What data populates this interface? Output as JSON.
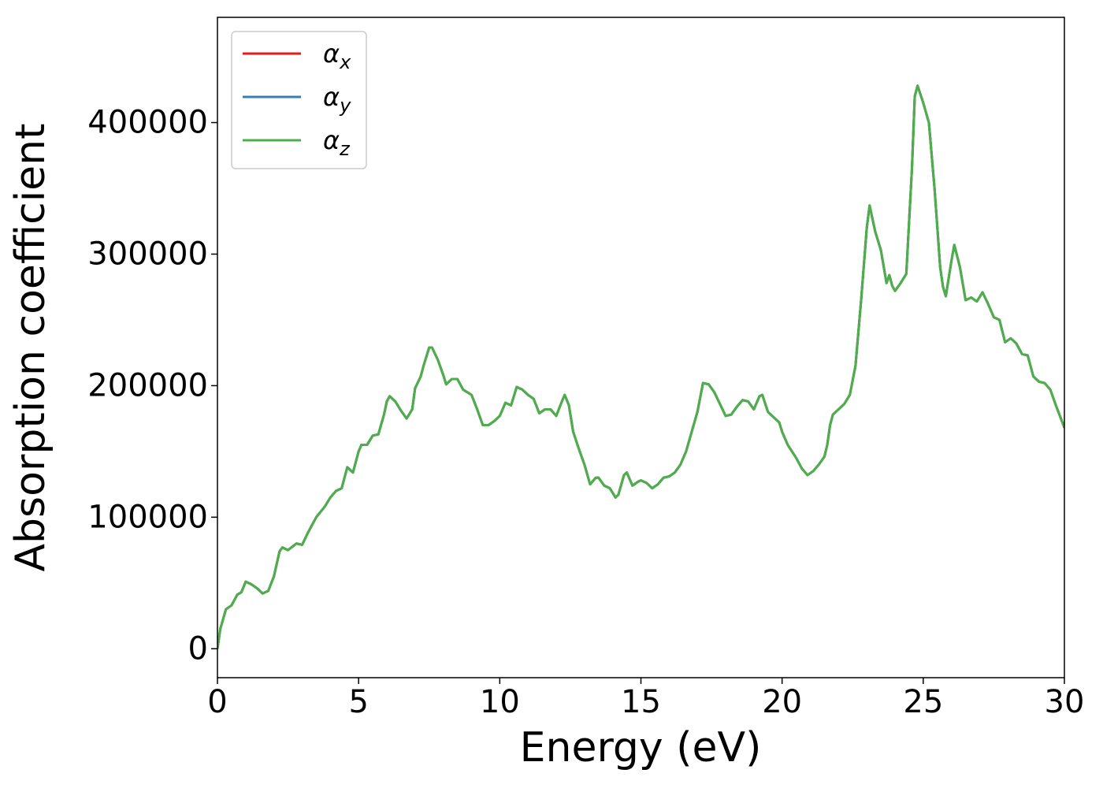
{
  "chart_data": {
    "type": "line",
    "xlabel": "Energy (eV)",
    "ylabel": "Absorption coefficient",
    "xlim": [
      0,
      30
    ],
    "ylim": [
      -22000,
      480000
    ],
    "xticks": [
      0,
      5,
      10,
      15,
      20,
      25,
      30
    ],
    "yticks": [
      0,
      100000,
      200000,
      300000,
      400000
    ],
    "grid": false,
    "legend": "upper left",
    "x": [
      0,
      0.1,
      0.3,
      0.5,
      0.7,
      0.85,
      1.0,
      1.2,
      1.4,
      1.6,
      1.8,
      2.0,
      2.2,
      2.3,
      2.5,
      2.8,
      3.0,
      3.2,
      3.5,
      3.8,
      4.0,
      4.2,
      4.4,
      4.6,
      4.8,
      5.0,
      5.1,
      5.3,
      5.5,
      5.7,
      5.9,
      6.0,
      6.1,
      6.3,
      6.5,
      6.7,
      6.9,
      7.0,
      7.2,
      7.3,
      7.5,
      7.6,
      7.8,
      8.0,
      8.1,
      8.3,
      8.5,
      8.7,
      9.0,
      9.2,
      9.4,
      9.6,
      9.8,
      10.0,
      10.2,
      10.4,
      10.6,
      10.8,
      11.0,
      11.2,
      11.4,
      11.6,
      11.8,
      12.0,
      12.2,
      12.3,
      12.45,
      12.6,
      12.8,
      13.0,
      13.2,
      13.4,
      13.5,
      13.7,
      13.9,
      14.1,
      14.2,
      14.4,
      14.5,
      14.7,
      14.9,
      15.0,
      15.2,
      15.4,
      15.6,
      15.8,
      16.0,
      16.2,
      16.4,
      16.6,
      16.8,
      17.0,
      17.2,
      17.4,
      17.6,
      17.8,
      18.0,
      18.2,
      18.4,
      18.6,
      18.8,
      19.0,
      19.2,
      19.3,
      19.5,
      19.7,
      19.9,
      20.0,
      20.2,
      20.5,
      20.7,
      20.9,
      21.1,
      21.3,
      21.5,
      21.6,
      21.7,
      21.8,
      22.0,
      22.2,
      22.4,
      22.6,
      22.8,
      23.0,
      23.1,
      23.3,
      23.5,
      23.7,
      23.8,
      23.9,
      24.0,
      24.2,
      24.4,
      24.6,
      24.7,
      24.8,
      25.0,
      25.2,
      25.4,
      25.6,
      25.7,
      25.8,
      26.0,
      26.1,
      26.3,
      26.5,
      26.7,
      26.9,
      27.1,
      27.3,
      27.5,
      27.7,
      27.9,
      28.1,
      28.3,
      28.5,
      28.7,
      28.9,
      29.1,
      29.3,
      29.5,
      29.7,
      30.0
    ],
    "series": [
      {
        "name": "αx",
        "color": "#e41a1c",
        "values": [
          0,
          15000,
          30000,
          33000,
          41000,
          43000,
          51000,
          49000,
          46000,
          42000,
          44000,
          55000,
          74000,
          77000,
          75000,
          80000,
          79000,
          88000,
          100000,
          108000,
          115000,
          120000,
          122000,
          138000,
          134000,
          150000,
          155000,
          155000,
          162000,
          163000,
          178000,
          188000,
          192000,
          188000,
          181000,
          175000,
          182000,
          198000,
          207000,
          215000,
          229000,
          229000,
          220000,
          208000,
          201000,
          205000,
          205000,
          197000,
          193000,
          182000,
          170000,
          170000,
          173000,
          177000,
          187000,
          185000,
          199000,
          197000,
          193000,
          190000,
          179000,
          182000,
          182000,
          177000,
          188000,
          193000,
          185000,
          165000,
          152000,
          140000,
          125000,
          130000,
          130000,
          124000,
          122000,
          115000,
          117000,
          132000,
          134000,
          124000,
          127000,
          128000,
          126000,
          122000,
          125000,
          130000,
          131000,
          134000,
          140000,
          150000,
          165000,
          180000,
          202000,
          201000,
          195000,
          186000,
          177000,
          178000,
          184000,
          189000,
          188000,
          182000,
          192000,
          193000,
          180000,
          176000,
          172000,
          165000,
          155000,
          145000,
          137000,
          132000,
          135000,
          140000,
          146000,
          155000,
          170000,
          178000,
          182000,
          186000,
          193000,
          215000,
          265000,
          320000,
          337000,
          317000,
          303000,
          278000,
          284000,
          276000,
          272000,
          278000,
          285000,
          365000,
          420000,
          428000,
          415000,
          400000,
          350000,
          290000,
          275000,
          268000,
          295000,
          307000,
          290000,
          265000,
          267000,
          264000,
          271000,
          262000,
          252000,
          250000,
          233000,
          236000,
          232000,
          224000,
          223000,
          207000,
          203000,
          202000,
          197000,
          185000,
          168000
        ]
      },
      {
        "name": "αy",
        "color": "#377eb8",
        "values": [
          0,
          15000,
          30000,
          33000,
          41000,
          43000,
          51000,
          49000,
          46000,
          42000,
          44000,
          55000,
          74000,
          77000,
          75000,
          80000,
          79000,
          88000,
          100000,
          108000,
          115000,
          120000,
          122000,
          138000,
          134000,
          150000,
          155000,
          155000,
          162000,
          163000,
          178000,
          188000,
          192000,
          188000,
          181000,
          175000,
          182000,
          198000,
          207000,
          215000,
          229000,
          229000,
          220000,
          208000,
          201000,
          205000,
          205000,
          197000,
          193000,
          182000,
          170000,
          170000,
          173000,
          177000,
          187000,
          185000,
          199000,
          197000,
          193000,
          190000,
          179000,
          182000,
          182000,
          177000,
          188000,
          193000,
          185000,
          165000,
          152000,
          140000,
          125000,
          130000,
          130000,
          124000,
          122000,
          115000,
          117000,
          132000,
          134000,
          124000,
          127000,
          128000,
          126000,
          122000,
          125000,
          130000,
          131000,
          134000,
          140000,
          150000,
          165000,
          180000,
          202000,
          201000,
          195000,
          186000,
          177000,
          178000,
          184000,
          189000,
          188000,
          182000,
          192000,
          193000,
          180000,
          176000,
          172000,
          165000,
          155000,
          145000,
          137000,
          132000,
          135000,
          140000,
          146000,
          155000,
          170000,
          178000,
          182000,
          186000,
          193000,
          215000,
          265000,
          320000,
          337000,
          317000,
          303000,
          278000,
          284000,
          276000,
          272000,
          278000,
          285000,
          365000,
          420000,
          428000,
          415000,
          400000,
          350000,
          290000,
          275000,
          268000,
          295000,
          307000,
          290000,
          265000,
          267000,
          264000,
          271000,
          262000,
          252000,
          250000,
          233000,
          236000,
          232000,
          224000,
          223000,
          207000,
          203000,
          202000,
          197000,
          185000,
          168000
        ]
      },
      {
        "name": "αz",
        "color": "#4daf4a",
        "values": [
          0,
          15000,
          30000,
          33000,
          41000,
          43000,
          51000,
          49000,
          46000,
          42000,
          44000,
          55000,
          74000,
          77000,
          75000,
          80000,
          79000,
          88000,
          100000,
          108000,
          115000,
          120000,
          122000,
          138000,
          134000,
          150000,
          155000,
          155000,
          162000,
          163000,
          178000,
          188000,
          192000,
          188000,
          181000,
          175000,
          182000,
          198000,
          207000,
          215000,
          229000,
          229000,
          220000,
          208000,
          201000,
          205000,
          205000,
          197000,
          193000,
          182000,
          170000,
          170000,
          173000,
          177000,
          187000,
          185000,
          199000,
          197000,
          193000,
          190000,
          179000,
          182000,
          182000,
          177000,
          188000,
          193000,
          185000,
          165000,
          152000,
          140000,
          125000,
          130000,
          130000,
          124000,
          122000,
          115000,
          117000,
          132000,
          134000,
          124000,
          127000,
          128000,
          126000,
          122000,
          125000,
          130000,
          131000,
          134000,
          140000,
          150000,
          165000,
          180000,
          202000,
          201000,
          195000,
          186000,
          177000,
          178000,
          184000,
          189000,
          188000,
          182000,
          192000,
          193000,
          180000,
          176000,
          172000,
          165000,
          155000,
          145000,
          137000,
          132000,
          135000,
          140000,
          146000,
          155000,
          170000,
          178000,
          182000,
          186000,
          193000,
          215000,
          265000,
          320000,
          337000,
          317000,
          303000,
          278000,
          284000,
          276000,
          272000,
          278000,
          285000,
          365000,
          420000,
          428000,
          415000,
          400000,
          350000,
          290000,
          275000,
          268000,
          295000,
          307000,
          290000,
          265000,
          267000,
          264000,
          271000,
          262000,
          252000,
          250000,
          233000,
          236000,
          232000,
          224000,
          223000,
          207000,
          203000,
          202000,
          197000,
          185000,
          168000
        ]
      }
    ]
  }
}
